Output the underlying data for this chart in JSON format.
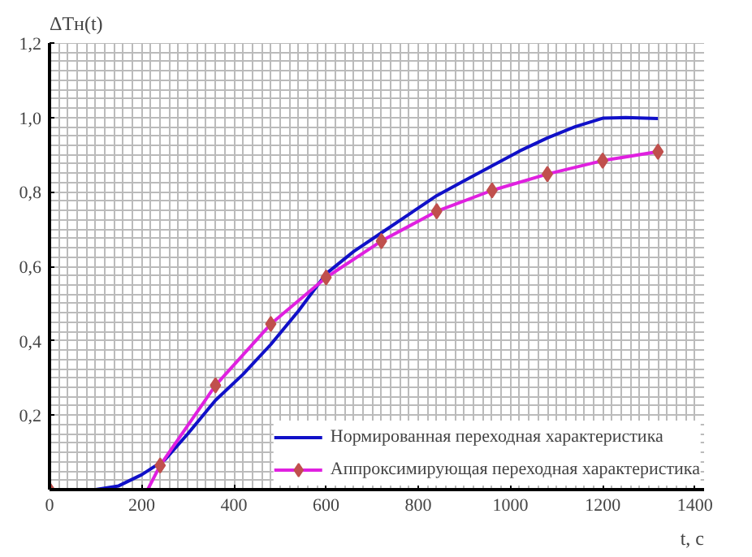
{
  "chart_data": {
    "type": "line",
    "xlabel": "t, с",
    "ylabel": "ΔTн(t)",
    "xlim": [
      0,
      1420
    ],
    "ylim": [
      0,
      1.2
    ],
    "xticks": [
      0,
      200,
      400,
      600,
      800,
      1000,
      1200,
      1400
    ],
    "yticks": [
      {
        "value": 0,
        "label": null
      },
      {
        "value": 0.2,
        "label": "0,2"
      },
      {
        "value": 0.4,
        "label": "0,4"
      },
      {
        "value": 0.6,
        "label": "0,6"
      },
      {
        "value": 0.8,
        "label": "0,8"
      },
      {
        "value": 1.0,
        "label": "1,0"
      },
      {
        "value": 1.2,
        "label": "1,2"
      }
    ],
    "grid": true,
    "legend": "bottom right",
    "series": [
      {
        "name": "Нормированная переходная характеристика",
        "color": "#1010c8",
        "marker": "none",
        "x": [
          0,
          100,
          150,
          200,
          250,
          300,
          360,
          420,
          480,
          540,
          600,
          660,
          720,
          780,
          840,
          900,
          960,
          1020,
          1080,
          1140,
          1200,
          1250,
          1320
        ],
        "values": [
          0,
          0,
          0.01,
          0.04,
          0.08,
          0.15,
          0.24,
          0.31,
          0.39,
          0.48,
          0.58,
          0.64,
          0.69,
          0.74,
          0.79,
          0.83,
          0.87,
          0.91,
          0.945,
          0.975,
          0.998,
          1.0,
          0.997
        ]
      },
      {
        "name": "Аппроксимирующая переходная характеристика",
        "color": "#e020e0",
        "colors": [
          "#c0504d",
          null,
          "#c0504d",
          "#c0504d",
          "#c0504d",
          "#c0504d",
          "#c0504d",
          "#c0504d",
          "#c0504d",
          "#c0504d",
          "#c0504d",
          "#c0504d"
        ],
        "marker": "diamond",
        "x": [
          0,
          213,
          240,
          360,
          480,
          600,
          720,
          840,
          960,
          1080,
          1200,
          1320
        ],
        "values": [
          0,
          0,
          0.065,
          0.28,
          0.445,
          0.57,
          0.668,
          0.748,
          0.804,
          0.848,
          0.884,
          0.908
        ]
      }
    ]
  }
}
